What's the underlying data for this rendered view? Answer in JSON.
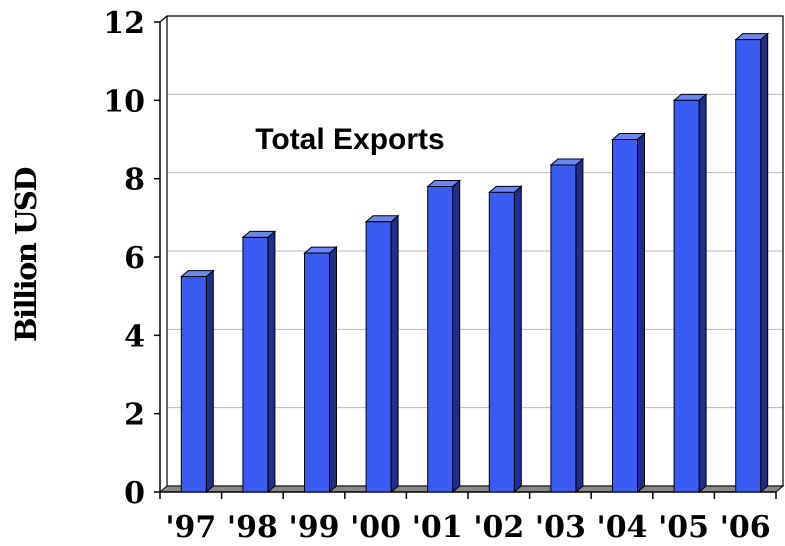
{
  "chart_data": {
    "type": "bar",
    "categories": [
      "'97",
      "'98",
      "'99",
      "'00",
      "'01",
      "'02",
      "'03",
      "'04",
      "'05",
      "'06"
    ],
    "series": [
      {
        "name": "Total Exports",
        "values": [
          5.5,
          6.5,
          6.1,
          6.9,
          7.8,
          7.65,
          8.35,
          9.0,
          10.0,
          11.55
        ]
      }
    ],
    "xlabel": "",
    "ylabel": "Billion USD",
    "ylim": [
      0,
      12
    ],
    "yticks": [
      0,
      2,
      4,
      6,
      8,
      10,
      12
    ],
    "grid": true,
    "bar_color": "#3a5cf2",
    "bar_side_color": "#1f2e8a",
    "bar_top_color": "#6a86f5"
  }
}
